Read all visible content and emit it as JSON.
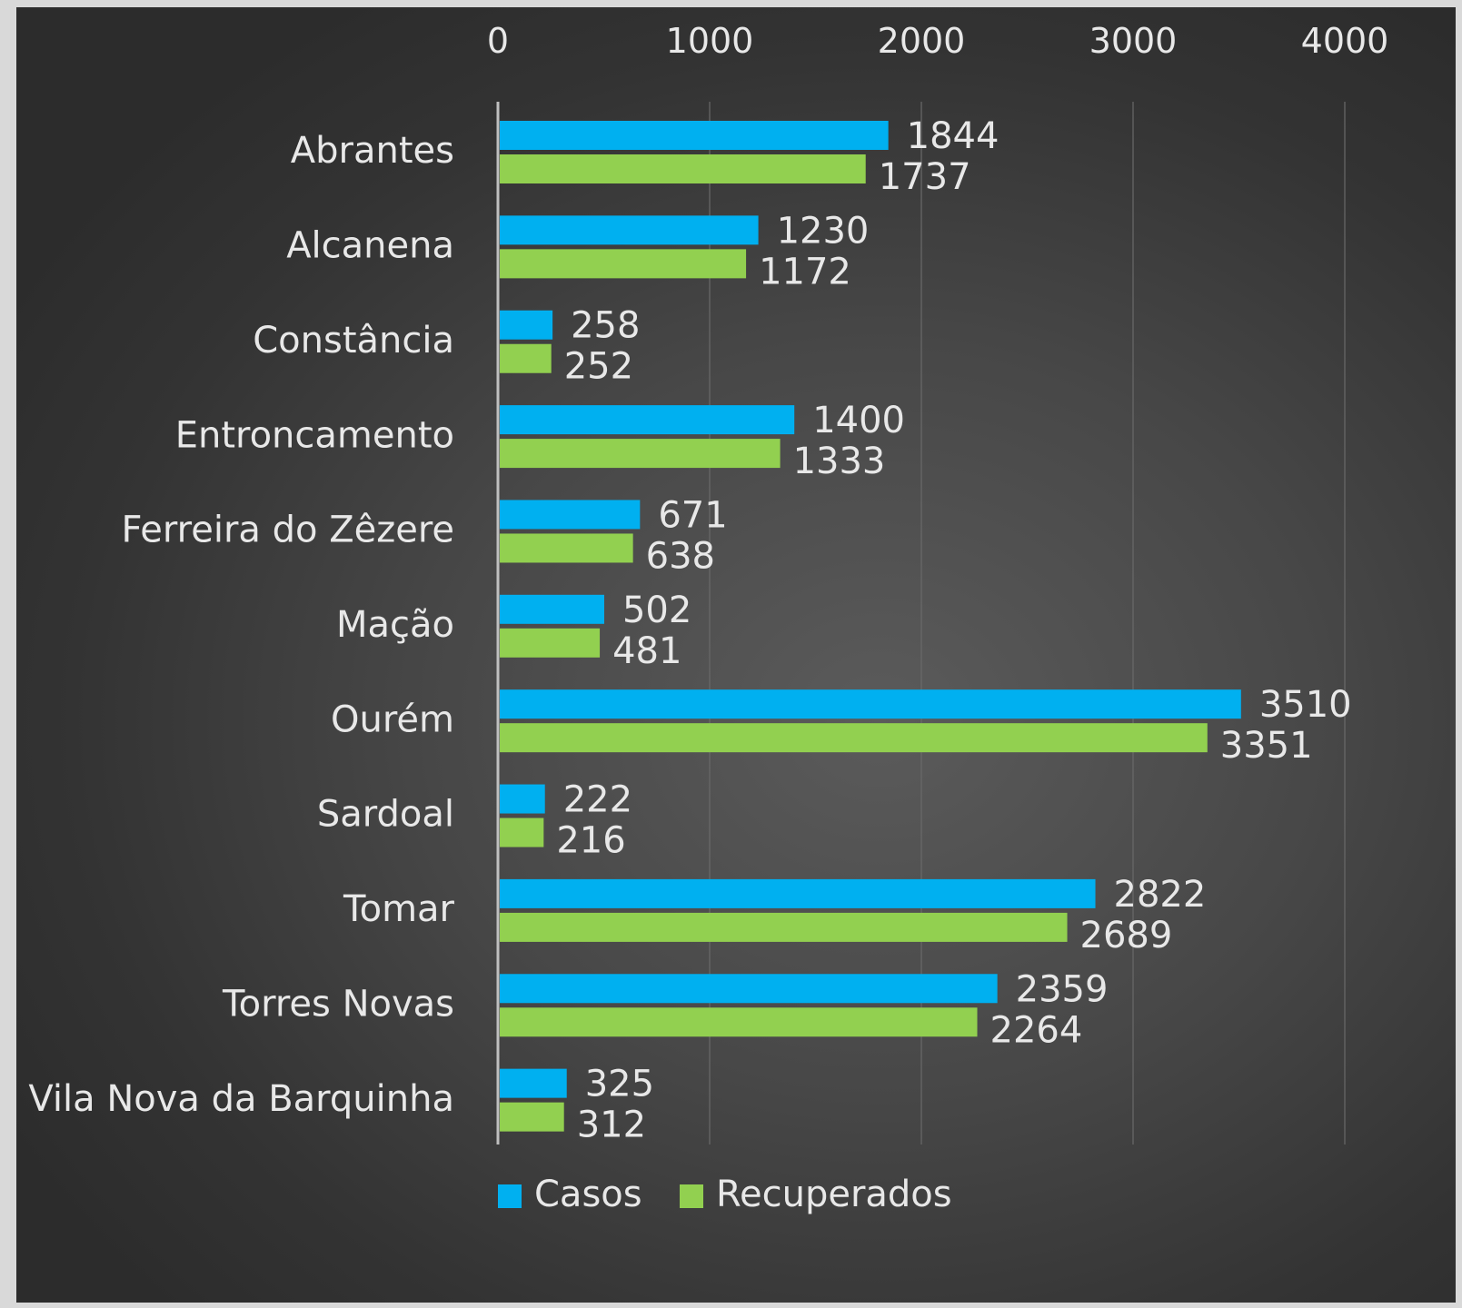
{
  "chart_data": {
    "type": "bar",
    "orientation": "horizontal",
    "title": "",
    "xlabel": "",
    "ylabel": "",
    "categories": [
      "Abrantes",
      "Alcanena",
      "Constância",
      "Entroncamento",
      "Ferreira do Zêzere",
      "Mação",
      "Ourém",
      "Sardoal",
      "Tomar",
      "Torres Novas",
      "Vila Nova da Barquinha"
    ],
    "series": [
      {
        "name": "Casos",
        "color": "#00b0f0",
        "values": [
          1844,
          1230,
          258,
          1400,
          671,
          502,
          3510,
          222,
          2822,
          2359,
          325
        ]
      },
      {
        "name": "Recuperados",
        "color": "#92d050",
        "values": [
          1737,
          1172,
          252,
          1333,
          638,
          481,
          3351,
          216,
          2689,
          2264,
          312
        ]
      }
    ],
    "xlim": [
      0,
      4000
    ],
    "xticks": [
      "0",
      "1000",
      "2000",
      "3000",
      "4000"
    ],
    "x_axis_position": "top",
    "grid": true,
    "data_labels": true,
    "legend_position": "bottom",
    "background": "#474747"
  }
}
